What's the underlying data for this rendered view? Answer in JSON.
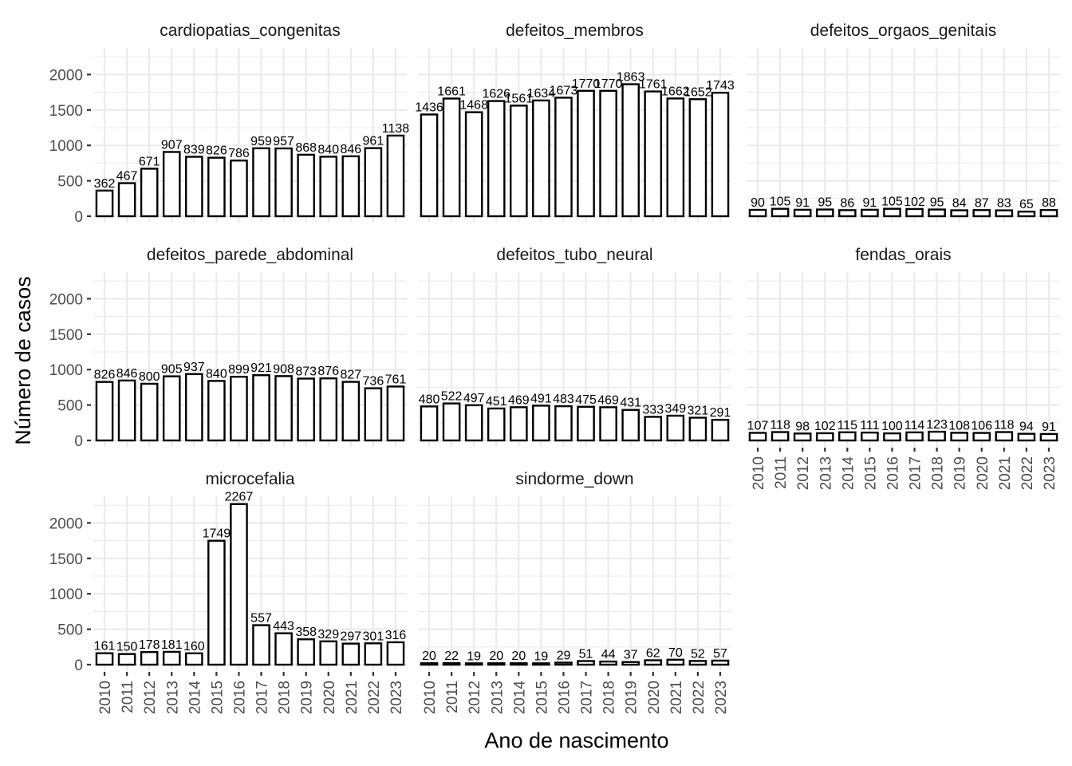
{
  "chart_data": {
    "type": "bar",
    "layout": "facet_wrap",
    "ncol": 3,
    "xlabel": "Ano de nascimento",
    "ylabel": "Número de casos",
    "categories": [
      "2010",
      "2011",
      "2012",
      "2013",
      "2014",
      "2015",
      "2016",
      "2017",
      "2018",
      "2019",
      "2020",
      "2021",
      "2022",
      "2023"
    ],
    "ylim": [
      0,
      2300
    ],
    "yticks": [
      0,
      500,
      1000,
      1500,
      2000
    ],
    "grid": true,
    "bar_fill": "#ffffff",
    "bar_outline": "#000000",
    "facets": [
      {
        "name": "cardiopatias_congenitas",
        "values": [
          362,
          467,
          671,
          907,
          839,
          826,
          786,
          959,
          957,
          868,
          840,
          846,
          961,
          1138
        ]
      },
      {
        "name": "defeitos_membros",
        "values": [
          1436,
          1661,
          1468,
          1626,
          1561,
          1634,
          1673,
          1770,
          1770,
          1863,
          1761,
          1662,
          1652,
          1743
        ]
      },
      {
        "name": "defeitos_orgaos_genitais",
        "values": [
          90,
          105,
          91,
          95,
          86,
          91,
          105,
          102,
          95,
          84,
          87,
          83,
          65,
          88
        ]
      },
      {
        "name": "defeitos_parede_abdominal",
        "values": [
          826,
          846,
          800,
          905,
          937,
          840,
          899,
          921,
          908,
          873,
          876,
          827,
          736,
          761
        ]
      },
      {
        "name": "defeitos_tubo_neural",
        "values": [
          480,
          522,
          497,
          451,
          469,
          491,
          483,
          475,
          469,
          431,
          333,
          349,
          321,
          291
        ]
      },
      {
        "name": "fendas_orais",
        "values": [
          107,
          118,
          98,
          102,
          115,
          111,
          100,
          114,
          123,
          108,
          106,
          118,
          94,
          91
        ]
      },
      {
        "name": "microcefalia",
        "values": [
          161,
          150,
          178,
          181,
          160,
          1749,
          2267,
          557,
          443,
          358,
          329,
          297,
          301,
          316
        ]
      },
      {
        "name": "sindorme_down",
        "values": [
          20,
          22,
          19,
          20,
          20,
          19,
          29,
          51,
          44,
          37,
          62,
          70,
          52,
          57
        ]
      }
    ]
  }
}
